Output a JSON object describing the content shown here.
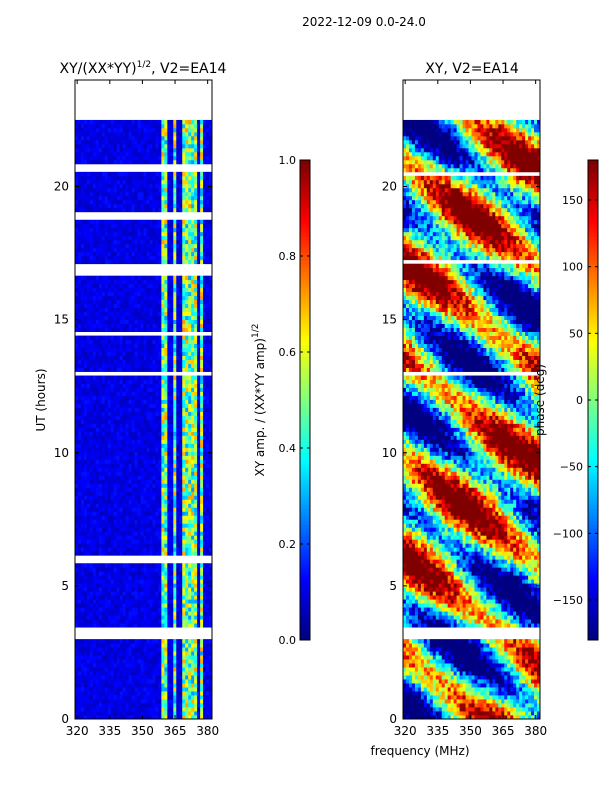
{
  "figure": {
    "suptitle": "2022-12-09 0.0-24.0",
    "xlabel_shared": "frequency (MHz)"
  },
  "colors": {
    "gap": "#ffffff",
    "frame": "#000000"
  },
  "chart_data": [
    {
      "type": "heatmap",
      "title_prefix": "XY/(XX*YY)",
      "title_exponent": "1/2",
      "title_suffix": ", V2=EA14",
      "xlabel": "frequency (MHz)",
      "ylabel": "UT (hours)",
      "xlim": [
        319,
        382
      ],
      "ylim": [
        0,
        24
      ],
      "xticks": [
        {
          "value": 320,
          "label": "320"
        },
        {
          "value": 335,
          "label": "335"
        },
        {
          "value": 350,
          "label": "350"
        },
        {
          "value": 365,
          "label": "365"
        },
        {
          "value": 380,
          "label": "380"
        }
      ],
      "yticks": [
        {
          "value": 0,
          "label": "0"
        },
        {
          "value": 5,
          "label": "5"
        },
        {
          "value": 10,
          "label": "10"
        },
        {
          "value": 15,
          "label": "15"
        },
        {
          "value": 20,
          "label": "20"
        }
      ],
      "data_range_hours": [
        0,
        22.5
      ],
      "colorbar": {
        "label_prefix": "XY amp. / (XX*YY amp)",
        "label_exponent": "1/2",
        "range": [
          0.0,
          1.0
        ],
        "ticks": [
          {
            "value": 0.0,
            "label": "0.0"
          },
          {
            "value": 0.2,
            "label": "0.2"
          },
          {
            "value": 0.4,
            "label": "0.4"
          },
          {
            "value": 0.6,
            "label": "0.6"
          },
          {
            "value": 0.8,
            "label": "0.8"
          },
          {
            "value": 1.0,
            "label": "1.0"
          }
        ]
      },
      "gaps_hours": [
        [
          3.0,
          3.5
        ],
        [
          5.8,
          6.1
        ],
        [
          12.9,
          13.1
        ],
        [
          14.4,
          14.6
        ],
        [
          16.6,
          17.1
        ],
        [
          18.8,
          19.1
        ],
        [
          20.6,
          20.8
        ]
      ],
      "bright_bands_mhz": [
        [
          359,
          362
        ],
        [
          364,
          366
        ],
        [
          368,
          372
        ],
        [
          373,
          375
        ],
        [
          376,
          378
        ]
      ],
      "background_value": 0.1,
      "band_value": 0.5
    },
    {
      "type": "heatmap",
      "title": "XY, V2=EA14",
      "xlabel": "frequency (MHz)",
      "ylabel": "",
      "xlim": [
        319,
        382
      ],
      "ylim": [
        0,
        24
      ],
      "xticks": [
        {
          "value": 320,
          "label": "320"
        },
        {
          "value": 335,
          "label": "335"
        },
        {
          "value": 350,
          "label": "350"
        },
        {
          "value": 365,
          "label": "365"
        },
        {
          "value": 380,
          "label": "380"
        }
      ],
      "yticks": [
        {
          "value": 0,
          "label": "0"
        },
        {
          "value": 5,
          "label": "5"
        },
        {
          "value": 10,
          "label": "10"
        },
        {
          "value": 15,
          "label": "15"
        },
        {
          "value": 20,
          "label": "20"
        }
      ],
      "data_range_hours": [
        0,
        22.5
      ],
      "colorbar": {
        "label": "phase (deg)",
        "range": [
          -180,
          180
        ],
        "ticks": [
          {
            "value": -150,
            "label": "−150"
          },
          {
            "value": -100,
            "label": "−100"
          },
          {
            "value": -50,
            "label": "−50"
          },
          {
            "value": 0,
            "label": "0"
          },
          {
            "value": 50,
            "label": "50"
          },
          {
            "value": 100,
            "label": "100"
          },
          {
            "value": 150,
            "label": "150"
          }
        ]
      },
      "gaps_hours": [
        [
          3.0,
          3.5
        ],
        [
          12.9,
          13.1
        ],
        [
          17.1,
          17.3
        ],
        [
          20.4,
          20.6
        ]
      ]
    }
  ]
}
